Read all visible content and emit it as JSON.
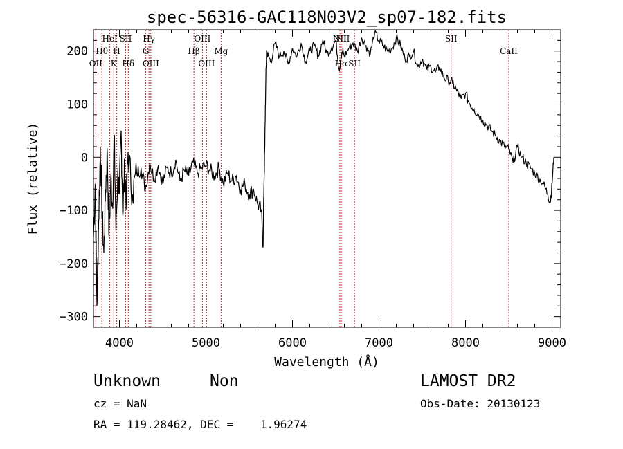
{
  "chart_data": {
    "type": "line",
    "title": "spec-56316-GAC118N03V2_sp07-182.fits",
    "xlabel": "Wavelength (Å)",
    "ylabel": "Flux (relative)",
    "xlim": [
      3700,
      9100
    ],
    "ylim": [
      -320,
      240
    ],
    "xticks": [
      {
        "value": 4000,
        "label": "4000"
      },
      {
        "value": 5000,
        "label": "5000"
      },
      {
        "value": 6000,
        "label": "6000"
      },
      {
        "value": 7000,
        "label": "7000"
      },
      {
        "value": 8000,
        "label": "8000"
      },
      {
        "value": 9000,
        "label": "9000"
      }
    ],
    "yticks": [
      {
        "value": -300,
        "label": "−300"
      },
      {
        "value": -200,
        "label": "−200"
      },
      {
        "value": -100,
        "label": "−100"
      },
      {
        "value": 0,
        "label": "0"
      },
      {
        "value": 100,
        "label": "100"
      },
      {
        "value": 200,
        "label": "200"
      }
    ],
    "series": [
      {
        "x": [
          3700,
          3720,
          3740,
          3760,
          3780,
          3800,
          3820,
          3840,
          3860,
          3880,
          3900,
          3920,
          3940,
          3960,
          3980,
          4000,
          4020,
          4040,
          4060,
          4080,
          4100,
          4150,
          4200,
          4250,
          4300,
          4350,
          4400,
          4450,
          4500,
          4550,
          4600,
          4650,
          4700,
          4750,
          4800,
          4850,
          4900,
          4950,
          5000,
          5050,
          5100,
          5150,
          5200,
          5250,
          5300,
          5350,
          5400,
          5450,
          5500,
          5550,
          5600,
          5640,
          5660,
          5670,
          5680,
          5690,
          5700,
          5720,
          5750,
          5800,
          5850,
          5900,
          5950,
          6000,
          6050,
          6100,
          6150,
          6200,
          6250,
          6300,
          6350,
          6400,
          6450,
          6500,
          6540,
          6560,
          6580,
          6600,
          6650,
          6700,
          6750,
          6800,
          6850,
          6900,
          6950,
          7000,
          7050,
          7100,
          7150,
          7200,
          7250,
          7300,
          7350,
          7400,
          7450,
          7500,
          7550,
          7600,
          7650,
          7700,
          7750,
          7800,
          7850,
          7900,
          7950,
          8000,
          8050,
          8100,
          8150,
          8200,
          8250,
          8300,
          8350,
          8400,
          8450,
          8500,
          8550,
          8600,
          8650,
          8700,
          8750,
          8800,
          8850,
          8900,
          8950,
          8980,
          9000,
          9020
        ],
        "y": [
          -150,
          -50,
          -280,
          -120,
          20,
          -110,
          -180,
          -60,
          10,
          -150,
          -40,
          -90,
          40,
          -140,
          -30,
          -70,
          50,
          -110,
          -20,
          -80,
          10,
          -70,
          -30,
          -20,
          -60,
          -10,
          -40,
          -15,
          -50,
          -20,
          -30,
          -5,
          -45,
          -25,
          -35,
          -10,
          -30,
          -20,
          -15,
          -25,
          -35,
          -20,
          -50,
          -30,
          -45,
          -35,
          -60,
          -50,
          -70,
          -60,
          -90,
          -100,
          -170,
          -50,
          20,
          130,
          200,
          190,
          180,
          215,
          190,
          200,
          175,
          205,
          190,
          215,
          180,
          200,
          210,
          190,
          220,
          195,
          205,
          220,
          165,
          185,
          200,
          190,
          205,
          215,
          200,
          225,
          210,
          195,
          235,
          220,
          210,
          200,
          205,
          225,
          210,
          185,
          190,
          200,
          170,
          185,
          165,
          170,
          160,
          170,
          150,
          145,
          140,
          125,
          110,
          120,
          100,
          90,
          80,
          70,
          60,
          50,
          40,
          30,
          20,
          15,
          -10,
          20,
          0,
          -10,
          -20,
          -30,
          -40,
          -50,
          -70,
          -85,
          -50,
          0
        ]
      }
    ],
    "emission_lines": [
      {
        "wavelength": 3727,
        "label": "OII",
        "row": 3
      },
      {
        "wavelength": 3797,
        "label": "Hθ",
        "row": 2
      },
      {
        "wavelength": 3889,
        "label": "HeI",
        "row": 1
      },
      {
        "wavelength": 3934,
        "label": "K",
        "row": 3
      },
      {
        "wavelength": 3969,
        "label": "H",
        "row": 2
      },
      {
        "wavelength": 4072,
        "label": "SII",
        "row": 1
      },
      {
        "wavelength": 4102,
        "label": "Hδ",
        "row": 3
      },
      {
        "wavelength": 4305,
        "label": "G",
        "row": 2
      },
      {
        "wavelength": 4341,
        "label": "Hγ",
        "row": 1
      },
      {
        "wavelength": 4363,
        "label": "OIII",
        "row": 3
      },
      {
        "wavelength": 4861,
        "label": "Hβ",
        "row": 2
      },
      {
        "wavelength": 4959,
        "label": "OIII",
        "row": 1
      },
      {
        "wavelength": 5007,
        "label": "OIII",
        "row": 3
      },
      {
        "wavelength": 5175,
        "label": "Mg",
        "row": 2
      },
      {
        "wavelength": 6548,
        "label": "NII",
        "row": 1
      },
      {
        "wavelength": 6563,
        "label": "Hα",
        "row": 3
      },
      {
        "wavelength": 6583,
        "label": "NII",
        "row": 1
      },
      {
        "wavelength": 6717,
        "label": "SII",
        "row": 3
      },
      {
        "wavelength": 7834,
        "label": "SII",
        "row": 1
      },
      {
        "wavelength": 8500,
        "label": "CaII",
        "row": 2
      }
    ]
  },
  "info": {
    "class": "Unknown",
    "subclass": "Non",
    "survey": "LAMOST DR2",
    "cz": "cz = NaN",
    "obs_date": "Obs-Date: 20130123",
    "coords": "RA = 119.28462, DEC =    1.96274"
  }
}
